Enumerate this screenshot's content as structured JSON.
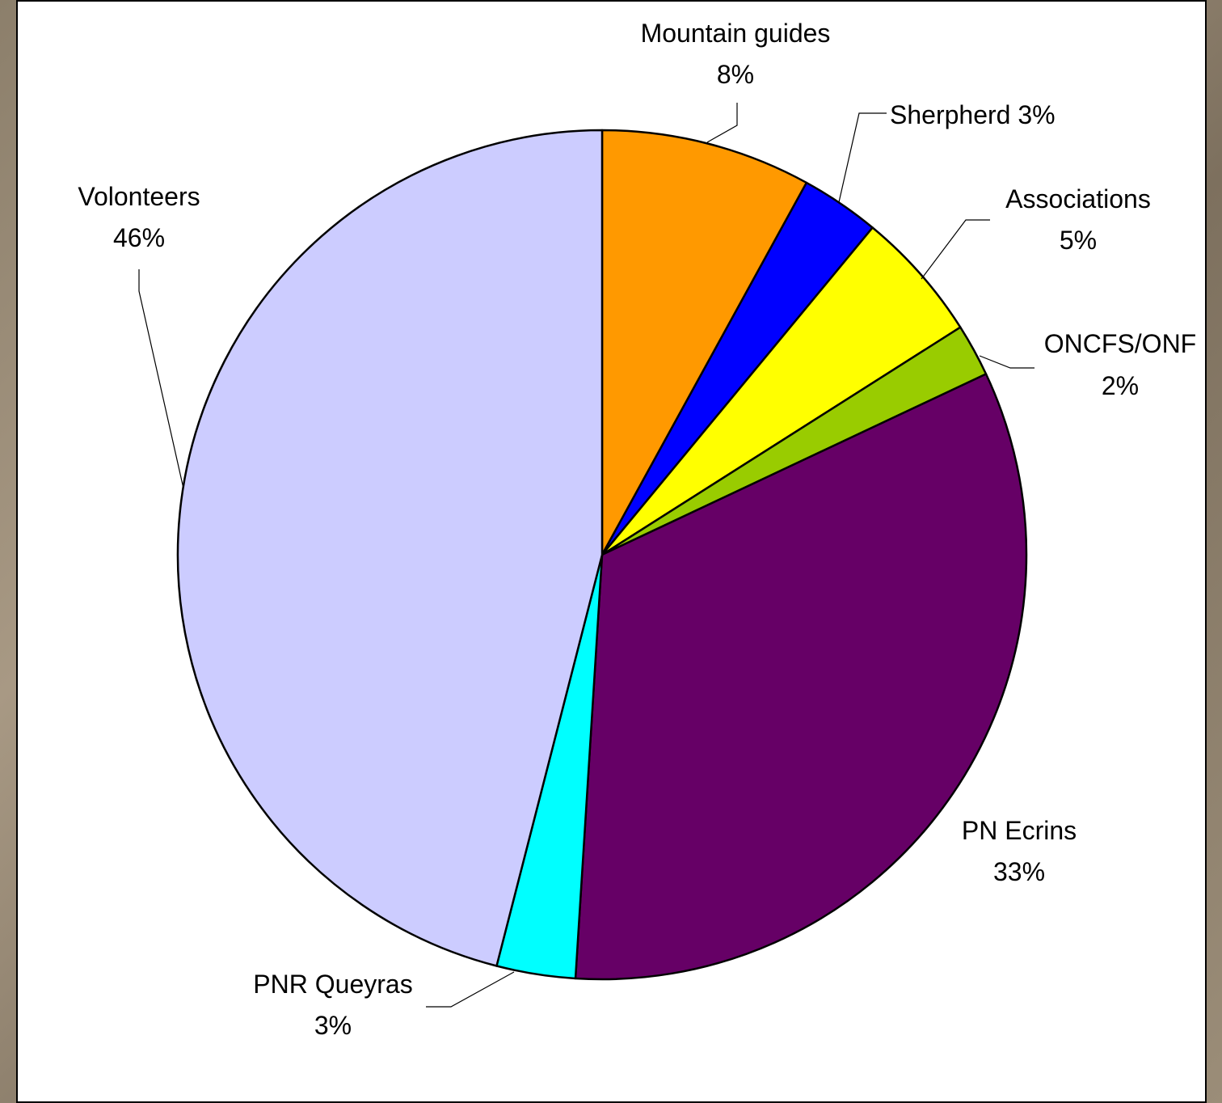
{
  "chart_data": {
    "type": "pie",
    "title": "",
    "start_angle_deg": 0,
    "direction": "clockwise",
    "slices": [
      {
        "key": "mountain",
        "label": "Mountain guides",
        "value": 8,
        "percent_label": "8%",
        "color": "#ff9900"
      },
      {
        "key": "sherpherd",
        "label": "Sherpherd",
        "value": 3,
        "percent_label": "3%",
        "color": "#0000ff"
      },
      {
        "key": "assoc",
        "label": "Associations",
        "value": 5,
        "percent_label": "5%",
        "color": "#ffff00"
      },
      {
        "key": "oncfs",
        "label": "ONCFS/ONF",
        "value": 2,
        "percent_label": "2%",
        "color": "#99cc00"
      },
      {
        "key": "ecrins",
        "label": "PN Ecrins",
        "value": 33,
        "percent_label": "33%",
        "color": "#660066"
      },
      {
        "key": "queyras",
        "label": "PNR Queyras",
        "value": 3,
        "percent_label": "3%",
        "color": "#00ffff"
      },
      {
        "key": "volonteers",
        "label": "Volonteers",
        "value": 46,
        "percent_label": "46%",
        "color": "#ccccff"
      }
    ]
  }
}
